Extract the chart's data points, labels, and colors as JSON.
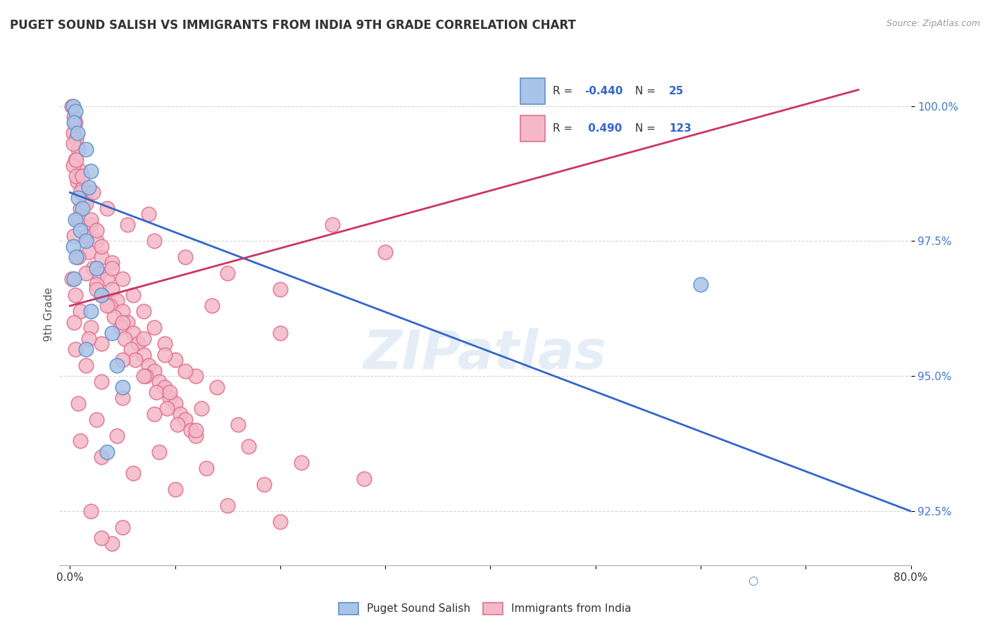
{
  "title": "PUGET SOUND SALISH VS IMMIGRANTS FROM INDIA 9TH GRADE CORRELATION CHART",
  "source": "Source: ZipAtlas.com",
  "ylabel": "9th Grade",
  "xlim": [
    -1.0,
    80.0
  ],
  "ylim": [
    91.5,
    100.8
  ],
  "yticks": [
    92.5,
    95.0,
    97.5,
    100.0
  ],
  "xticks": [
    0.0,
    10.0,
    20.0,
    30.0,
    40.0,
    50.0,
    60.0,
    70.0,
    80.0
  ],
  "xtick_labels": [
    "0.0%",
    "",
    "",
    "",
    "",
    "",
    "",
    "",
    "80.0%"
  ],
  "ytick_labels": [
    "92.5%",
    "95.0%",
    "97.5%",
    "100.0%"
  ],
  "watermark": "ZIPatlas",
  "legend_r_blue": "-0.440",
  "legend_n_blue": "25",
  "legend_r_pink": "0.490",
  "legend_n_pink": "123",
  "blue_color": "#a8c4e8",
  "pink_color": "#f4b8c8",
  "blue_edge_color": "#6090c8",
  "pink_edge_color": "#e07090",
  "blue_line_color": "#3366cc",
  "pink_line_color": "#cc3366",
  "blue_scatter": [
    [
      0.3,
      100.0
    ],
    [
      0.5,
      99.9
    ],
    [
      0.4,
      99.7
    ],
    [
      0.7,
      99.5
    ],
    [
      1.5,
      99.2
    ],
    [
      2.0,
      98.8
    ],
    [
      1.8,
      98.5
    ],
    [
      0.8,
      98.3
    ],
    [
      1.2,
      98.1
    ],
    [
      0.5,
      97.9
    ],
    [
      1.0,
      97.7
    ],
    [
      1.5,
      97.5
    ],
    [
      0.3,
      97.4
    ],
    [
      0.6,
      97.2
    ],
    [
      2.5,
      97.0
    ],
    [
      0.4,
      96.8
    ],
    [
      3.0,
      96.5
    ],
    [
      2.0,
      96.2
    ],
    [
      4.0,
      95.8
    ],
    [
      1.5,
      95.5
    ],
    [
      4.5,
      95.2
    ],
    [
      5.0,
      94.8
    ],
    [
      60.0,
      96.7
    ],
    [
      65.0,
      80.3
    ],
    [
      3.5,
      93.6
    ]
  ],
  "pink_scatter": [
    [
      0.2,
      100.0
    ],
    [
      0.4,
      99.8
    ],
    [
      0.5,
      99.7
    ],
    [
      0.3,
      99.5
    ],
    [
      0.6,
      99.4
    ],
    [
      0.8,
      99.2
    ],
    [
      0.5,
      99.0
    ],
    [
      1.0,
      98.8
    ],
    [
      0.7,
      98.6
    ],
    [
      1.2,
      98.5
    ],
    [
      1.5,
      98.3
    ],
    [
      1.0,
      98.1
    ],
    [
      0.8,
      97.9
    ],
    [
      2.0,
      97.8
    ],
    [
      1.5,
      97.6
    ],
    [
      2.5,
      97.5
    ],
    [
      1.8,
      97.3
    ],
    [
      3.0,
      97.2
    ],
    [
      2.2,
      97.0
    ],
    [
      2.8,
      96.9
    ],
    [
      3.5,
      96.8
    ],
    [
      2.5,
      96.7
    ],
    [
      4.0,
      96.6
    ],
    [
      3.0,
      96.5
    ],
    [
      4.5,
      96.4
    ],
    [
      3.8,
      96.3
    ],
    [
      5.0,
      96.2
    ],
    [
      4.2,
      96.1
    ],
    [
      5.5,
      96.0
    ],
    [
      4.8,
      95.9
    ],
    [
      6.0,
      95.8
    ],
    [
      5.2,
      95.7
    ],
    [
      6.5,
      95.6
    ],
    [
      5.8,
      95.5
    ],
    [
      7.0,
      95.4
    ],
    [
      6.2,
      95.3
    ],
    [
      7.5,
      95.2
    ],
    [
      8.0,
      95.1
    ],
    [
      7.2,
      95.0
    ],
    [
      8.5,
      94.9
    ],
    [
      9.0,
      94.8
    ],
    [
      8.2,
      94.7
    ],
    [
      9.5,
      94.6
    ],
    [
      10.0,
      94.5
    ],
    [
      9.2,
      94.4
    ],
    [
      10.5,
      94.3
    ],
    [
      11.0,
      94.2
    ],
    [
      10.2,
      94.1
    ],
    [
      11.5,
      94.0
    ],
    [
      12.0,
      93.9
    ],
    [
      0.3,
      98.9
    ],
    [
      0.6,
      98.7
    ],
    [
      1.0,
      98.4
    ],
    [
      1.5,
      98.2
    ],
    [
      2.0,
      97.9
    ],
    [
      2.5,
      97.7
    ],
    [
      3.0,
      97.4
    ],
    [
      4.0,
      97.1
    ],
    [
      5.0,
      96.8
    ],
    [
      6.0,
      96.5
    ],
    [
      7.0,
      96.2
    ],
    [
      8.0,
      95.9
    ],
    [
      9.0,
      95.6
    ],
    [
      10.0,
      95.3
    ],
    [
      12.0,
      95.0
    ],
    [
      0.4,
      97.6
    ],
    [
      0.8,
      97.2
    ],
    [
      1.5,
      96.9
    ],
    [
      2.5,
      96.6
    ],
    [
      3.5,
      96.3
    ],
    [
      5.0,
      96.0
    ],
    [
      7.0,
      95.7
    ],
    [
      9.0,
      95.4
    ],
    [
      11.0,
      95.1
    ],
    [
      14.0,
      94.8
    ],
    [
      0.2,
      96.8
    ],
    [
      0.5,
      96.5
    ],
    [
      1.0,
      96.2
    ],
    [
      2.0,
      95.9
    ],
    [
      3.0,
      95.6
    ],
    [
      5.0,
      95.3
    ],
    [
      7.0,
      95.0
    ],
    [
      9.5,
      94.7
    ],
    [
      12.5,
      94.4
    ],
    [
      16.0,
      94.1
    ],
    [
      0.3,
      99.3
    ],
    [
      0.6,
      99.0
    ],
    [
      1.2,
      98.7
    ],
    [
      2.2,
      98.4
    ],
    [
      3.5,
      98.1
    ],
    [
      5.5,
      97.8
    ],
    [
      8.0,
      97.5
    ],
    [
      11.0,
      97.2
    ],
    [
      15.0,
      96.9
    ],
    [
      20.0,
      96.6
    ],
    [
      0.5,
      95.5
    ],
    [
      1.5,
      95.2
    ],
    [
      3.0,
      94.9
    ],
    [
      5.0,
      94.6
    ],
    [
      8.0,
      94.3
    ],
    [
      12.0,
      94.0
    ],
    [
      17.0,
      93.7
    ],
    [
      22.0,
      93.4
    ],
    [
      28.0,
      93.1
    ],
    [
      1.0,
      93.8
    ],
    [
      3.0,
      93.5
    ],
    [
      6.0,
      93.2
    ],
    [
      10.0,
      92.9
    ],
    [
      15.0,
      92.6
    ],
    [
      20.0,
      92.3
    ],
    [
      2.0,
      92.5
    ],
    [
      5.0,
      92.2
    ],
    [
      4.0,
      91.9
    ],
    [
      0.8,
      94.5
    ],
    [
      2.5,
      94.2
    ],
    [
      4.5,
      93.9
    ],
    [
      8.5,
      93.6
    ],
    [
      13.0,
      93.3
    ],
    [
      18.5,
      93.0
    ],
    [
      25.0,
      97.8
    ],
    [
      30.0,
      97.3
    ],
    [
      0.4,
      96.0
    ],
    [
      1.8,
      95.7
    ],
    [
      4.0,
      97.0
    ],
    [
      7.5,
      98.0
    ],
    [
      3.0,
      92.0
    ],
    [
      13.5,
      96.3
    ],
    [
      20.0,
      95.8
    ]
  ],
  "blue_trendline_x": [
    0.0,
    80.0
  ],
  "blue_trendline_y": [
    98.4,
    92.5
  ],
  "pink_trendline_x": [
    0.0,
    75.0
  ],
  "pink_trendline_y": [
    96.3,
    100.3
  ],
  "figsize": [
    14.06,
    8.92
  ],
  "dpi": 100
}
